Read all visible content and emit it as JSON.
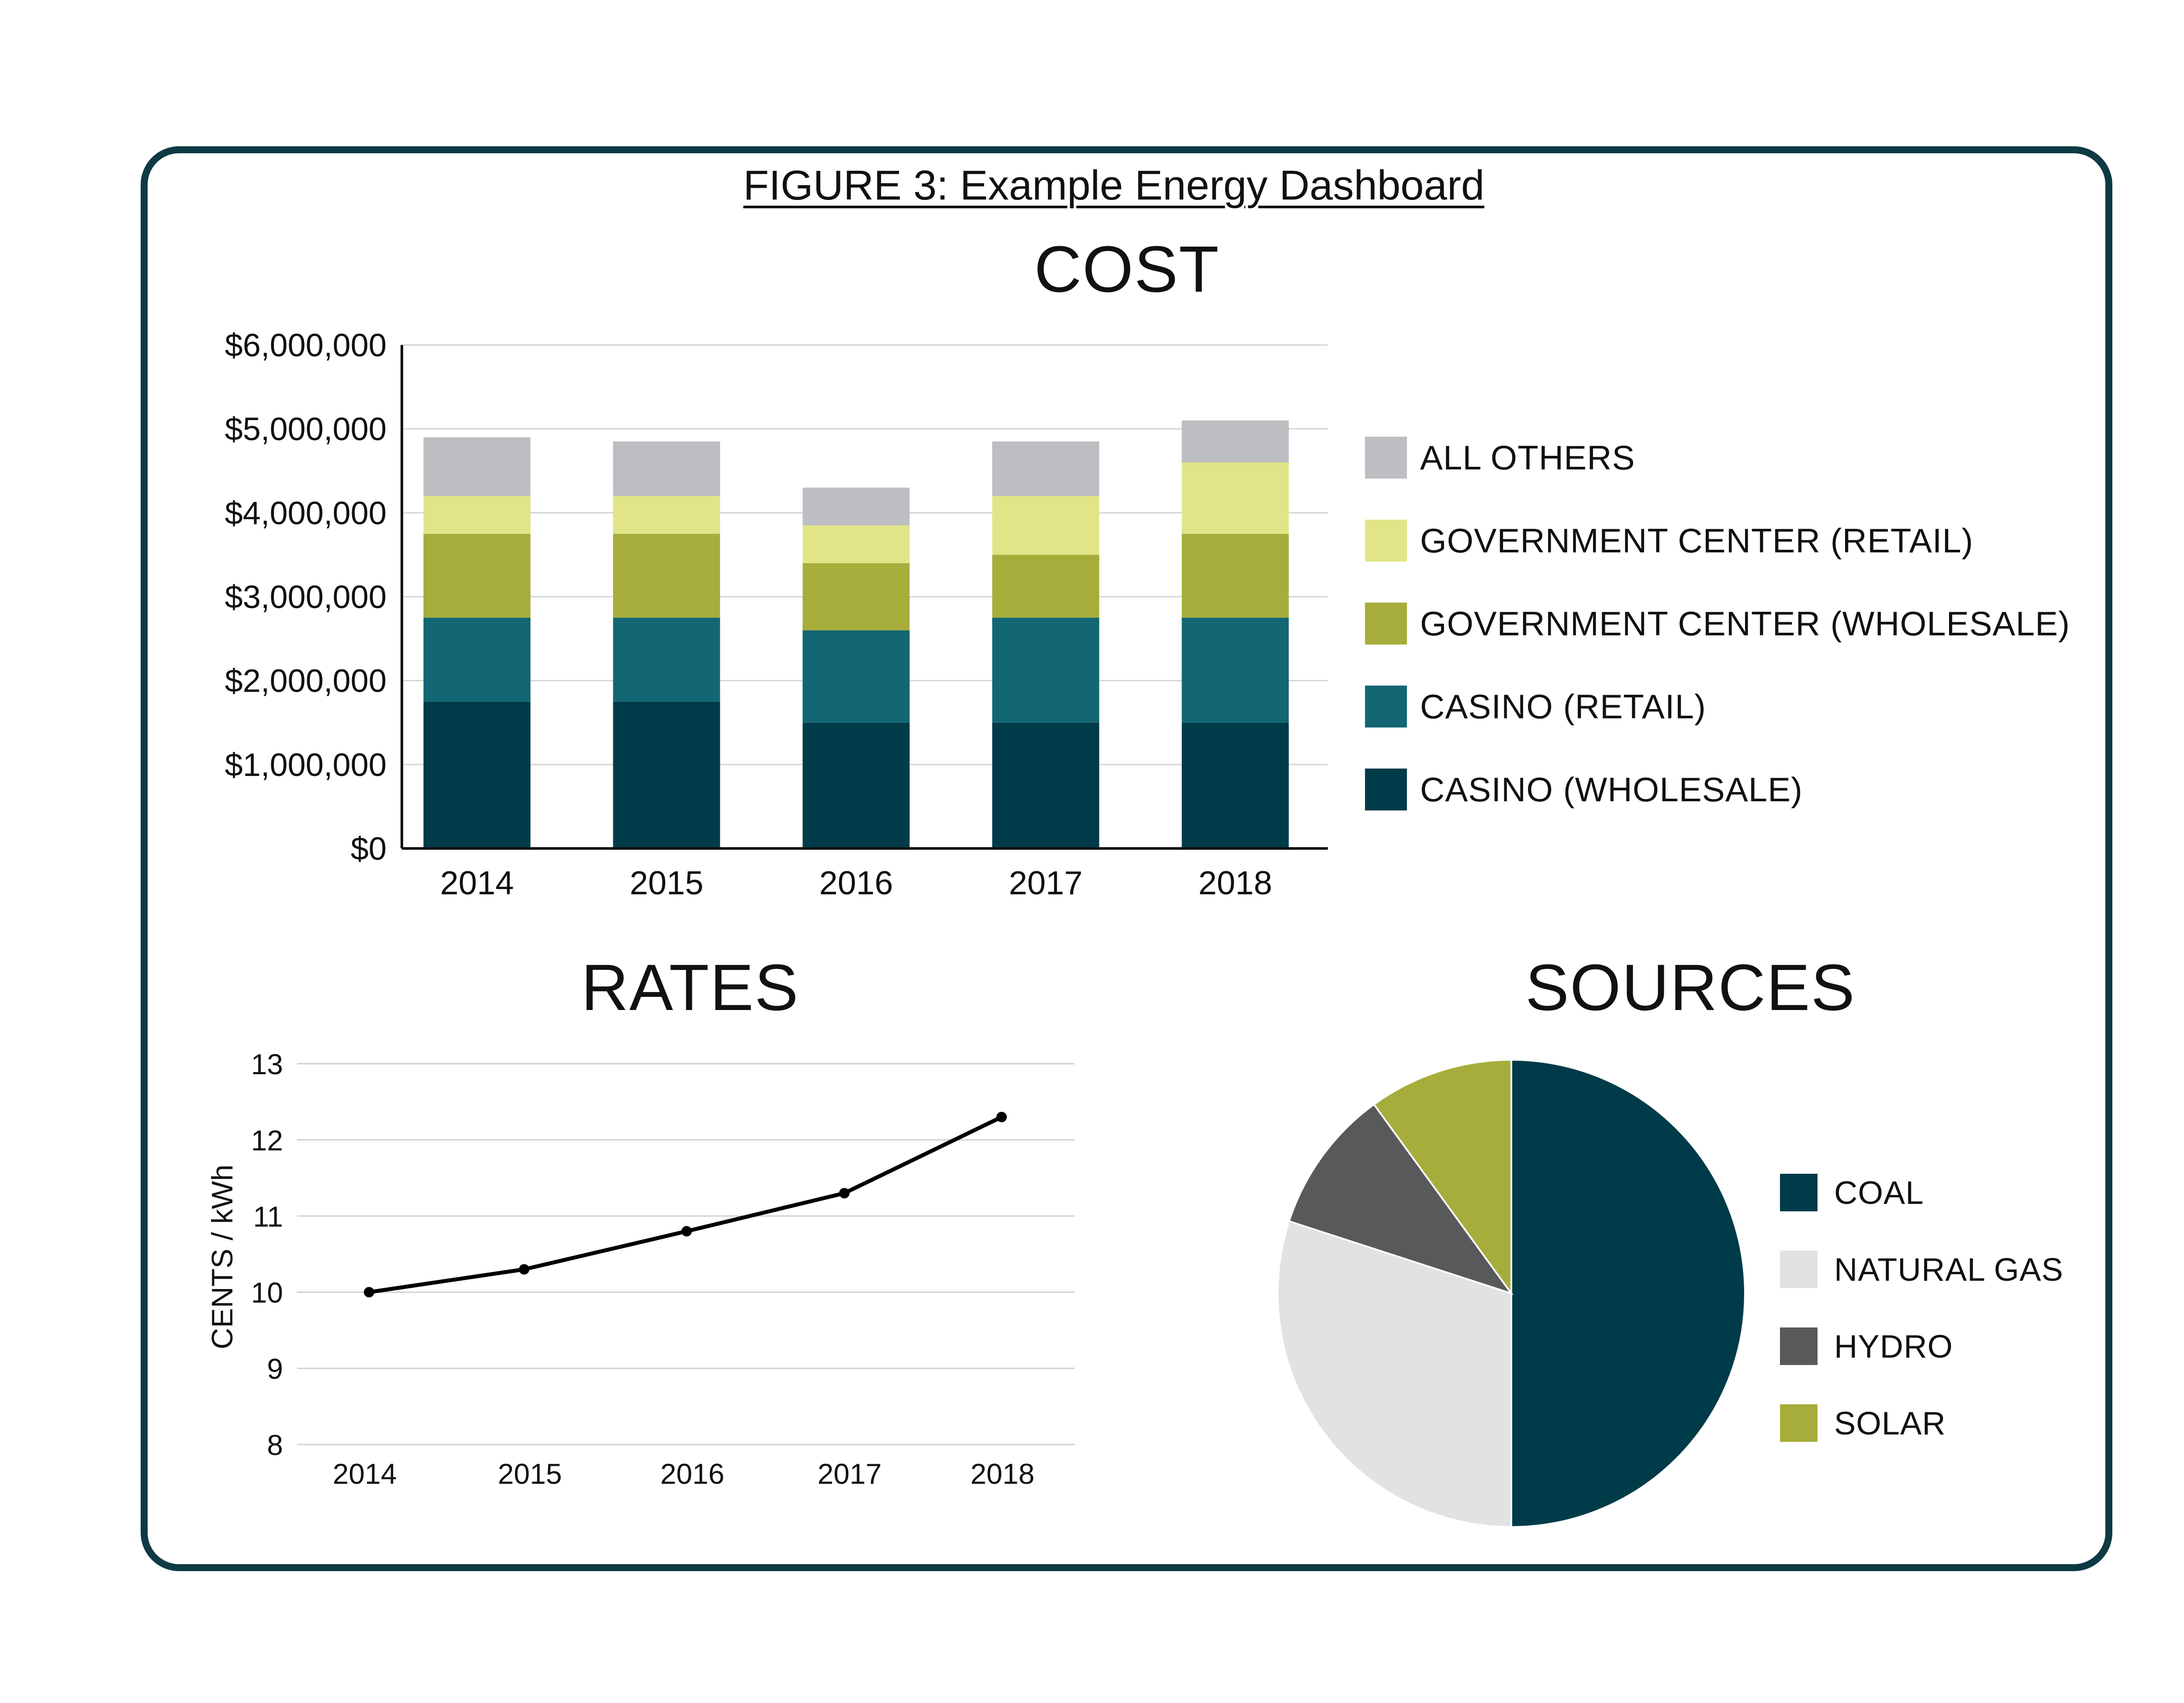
{
  "figure_title": "FIGURE 3: Example Energy Dashboard",
  "colors": {
    "frame": "#0e3a44",
    "casino_wholesale": "#003b49",
    "casino_retail": "#136674",
    "gov_wholesale": "#a7ad3b",
    "gov_retail": "#e1e587",
    "all_others": "#bdbec2",
    "coal": "#003b49",
    "natural_gas": "#e1e2e4",
    "hydro": "#58595b",
    "solar": "#a7ad3b"
  },
  "chart_data": [
    {
      "type": "bar",
      "stacked": true,
      "title": "COST",
      "categories": [
        "2014",
        "2015",
        "2016",
        "2017",
        "2018"
      ],
      "y_ticks": [
        "$0",
        "$1,000,000",
        "$2,000,000",
        "$3,000,000",
        "$4,000,000",
        "$5,000,000",
        "$6,000,000"
      ],
      "ylim": [
        0,
        6000000
      ],
      "grid": true,
      "legend_position": "right",
      "series": [
        {
          "name": "CASINO (WHOLESALE)",
          "color": "#003b49",
          "values": [
            1750000,
            1750000,
            1500000,
            1500000,
            1500000
          ]
        },
        {
          "name": "CASINO (RETAIL)",
          "color": "#136674",
          "values": [
            1000000,
            1000000,
            1100000,
            1250000,
            1250000
          ]
        },
        {
          "name": "GOVERNMENT CENTER (WHOLESALE)",
          "color": "#a7ad3b",
          "values": [
            1000000,
            1000000,
            800000,
            750000,
            1000000
          ]
        },
        {
          "name": "GOVERNMENT CENTER (RETAIL)",
          "color": "#e1e587",
          "values": [
            450000,
            450000,
            450000,
            700000,
            850000
          ]
        },
        {
          "name": "ALL OTHERS",
          "color": "#bdbec2",
          "values": [
            700000,
            650000,
            450000,
            650000,
            500000
          ]
        }
      ]
    },
    {
      "type": "line",
      "title": "RATES",
      "ylabel": "CENTS / kWh",
      "x": [
        "2014",
        "2015",
        "2016",
        "2017",
        "2018"
      ],
      "y_ticks": [
        "8",
        "9",
        "10",
        "11",
        "12",
        "13"
      ],
      "ylim": [
        8,
        13
      ],
      "grid": true,
      "series": [
        {
          "values": [
            10.0,
            10.3,
            10.8,
            11.3,
            12.3
          ],
          "color": "#000000"
        }
      ]
    },
    {
      "type": "pie",
      "title": "SOURCES",
      "legend_position": "right",
      "slices": [
        {
          "label": "COAL",
          "value": 50,
          "color": "#003b49"
        },
        {
          "label": "NATURAL GAS",
          "value": 30,
          "color": "#e1e2e4"
        },
        {
          "label": "HYDRO",
          "value": 10,
          "color": "#58595b"
        },
        {
          "label": "SOLAR",
          "value": 10,
          "color": "#a7ad3b"
        }
      ]
    }
  ]
}
